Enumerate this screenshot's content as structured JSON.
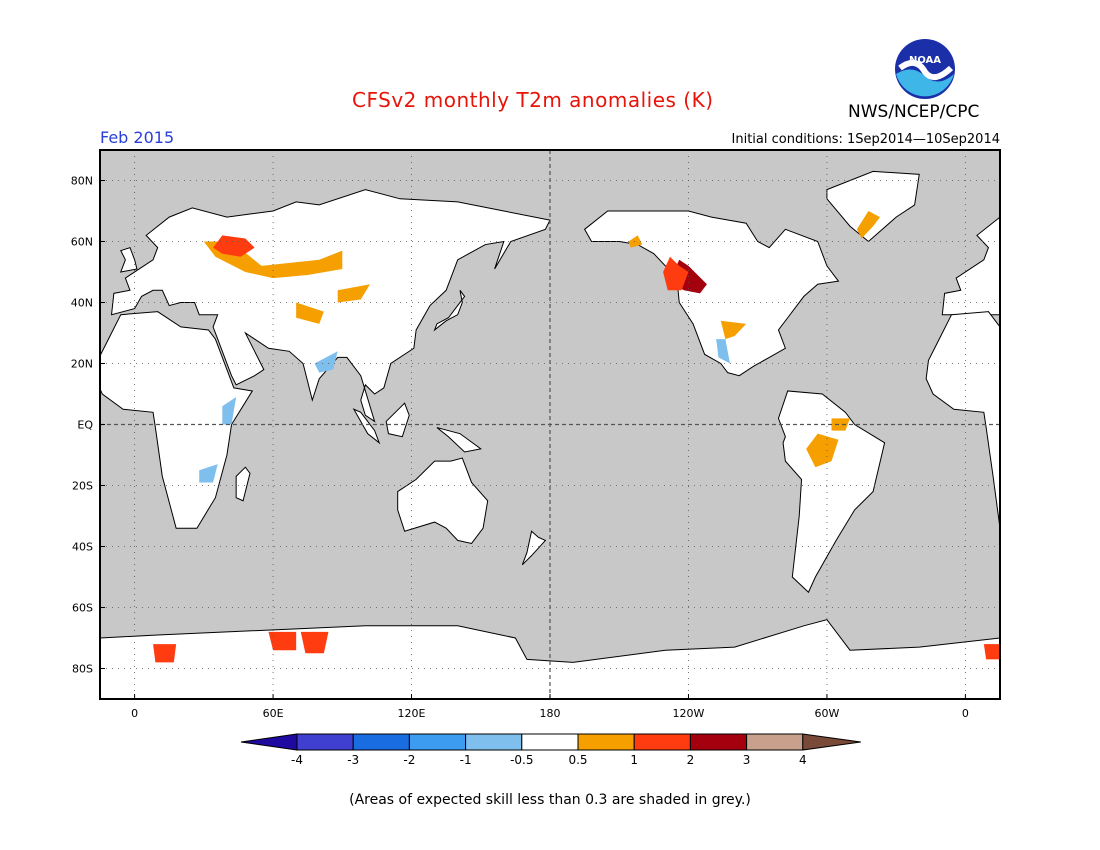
{
  "header": {
    "title": "CFSv2 monthly T2m anomalies (K)",
    "agency": "NWS/NCEP/CPC",
    "month": "Feb 2015",
    "initial_conditions": "Initial conditions: 1Sep2014—10Sep2014",
    "logo_icon": "noaa-logo-icon",
    "logo_text": "NOAA"
  },
  "map": {
    "lat_ticks": [
      {
        "lat": 80,
        "label": "80N"
      },
      {
        "lat": 60,
        "label": "60N"
      },
      {
        "lat": 40,
        "label": "40N"
      },
      {
        "lat": 20,
        "label": "20N"
      },
      {
        "lat": 0,
        "label": "EQ"
      },
      {
        "lat": -20,
        "label": "20S"
      },
      {
        "lat": -40,
        "label": "40S"
      },
      {
        "lat": -60,
        "label": "60S"
      },
      {
        "lat": -80,
        "label": "80S"
      }
    ],
    "lon_ticks": [
      {
        "lon": 0,
        "label": "0"
      },
      {
        "lon": 60,
        "label": "60E"
      },
      {
        "lon": 120,
        "label": "120E"
      },
      {
        "lon": 180,
        "label": "180"
      },
      {
        "lon": 240,
        "label": "120W"
      },
      {
        "lon": 300,
        "label": "60W"
      },
      {
        "lon": 360,
        "label": "0"
      }
    ],
    "lon_range": [
      -15,
      375
    ],
    "lat_range": [
      -90,
      90
    ],
    "ocean_color": "#c8c8c8",
    "skill_land_color": "#ffffff",
    "grid": "dotted",
    "anomalies": [
      {
        "name": "central-asia-warm",
        "value": 0.75,
        "points": [
          [
            30,
            60
          ],
          [
            42,
            60
          ],
          [
            55,
            52
          ],
          [
            80,
            54
          ],
          [
            90,
            57
          ],
          [
            90,
            51
          ],
          [
            75,
            49
          ],
          [
            60,
            48
          ],
          [
            48,
            50
          ],
          [
            35,
            55
          ]
        ]
      },
      {
        "name": "europe-russia-hot",
        "value": 1.5,
        "points": [
          [
            38,
            62
          ],
          [
            48,
            61
          ],
          [
            52,
            58
          ],
          [
            46,
            55
          ],
          [
            38,
            56
          ],
          [
            34,
            58
          ]
        ]
      },
      {
        "name": "mongolia-warm",
        "value": 0.75,
        "points": [
          [
            88,
            44
          ],
          [
            102,
            46
          ],
          [
            98,
            41
          ],
          [
            88,
            40
          ]
        ]
      },
      {
        "name": "tibet-warm",
        "value": 0.75,
        "points": [
          [
            70,
            40
          ],
          [
            82,
            37
          ],
          [
            80,
            33
          ],
          [
            70,
            35
          ]
        ]
      },
      {
        "name": "alaska-canada-warm",
        "value": 0.75,
        "points": [
          [
            214,
            60
          ],
          [
            218,
            62
          ],
          [
            220,
            59
          ],
          [
            215,
            58
          ]
        ]
      },
      {
        "name": "wus-very-hot",
        "value": 2.5,
        "points": [
          [
            233,
            49
          ],
          [
            236,
            54
          ],
          [
            240,
            52
          ],
          [
            248,
            46
          ],
          [
            245,
            43
          ],
          [
            238,
            44
          ],
          [
            234,
            46
          ]
        ]
      },
      {
        "name": "wus-hot",
        "value": 1.5,
        "points": [
          [
            229,
            50
          ],
          [
            232,
            55
          ],
          [
            236,
            52
          ],
          [
            240,
            50
          ],
          [
            237,
            44
          ],
          [
            231,
            44
          ]
        ]
      },
      {
        "name": "greenland-warm",
        "value": 0.75,
        "points": [
          [
            315,
            61
          ],
          [
            320,
            65
          ],
          [
            323,
            68
          ],
          [
            318,
            70
          ],
          [
            313,
            64
          ]
        ]
      },
      {
        "name": "texas-warm",
        "value": 0.75,
        "points": [
          [
            254,
            34
          ],
          [
            265,
            33
          ],
          [
            260,
            29
          ],
          [
            256,
            28
          ]
        ]
      },
      {
        "name": "amazon-warm",
        "value": 0.75,
        "points": [
          [
            296,
            -3
          ],
          [
            305,
            -5
          ],
          [
            302,
            -12
          ],
          [
            295,
            -14
          ],
          [
            291,
            -8
          ]
        ]
      },
      {
        "name": "brazil-warm",
        "value": 0.75,
        "points": [
          [
            302,
            2
          ],
          [
            310,
            2
          ],
          [
            308,
            -2
          ],
          [
            302,
            -2
          ]
        ]
      },
      {
        "name": "antarctica-hot-1",
        "value": 1.5,
        "points": [
          [
            8,
            -72
          ],
          [
            18,
            -72
          ],
          [
            17,
            -78
          ],
          [
            9,
            -78
          ]
        ]
      },
      {
        "name": "antarctica-hot-2",
        "value": 1.5,
        "points": [
          [
            58,
            -68
          ],
          [
            70,
            -68
          ],
          [
            70,
            -74
          ],
          [
            60,
            -74
          ]
        ]
      },
      {
        "name": "antarctica-hot-3",
        "value": 1.5,
        "points": [
          [
            72,
            -68
          ],
          [
            84,
            -68
          ],
          [
            82,
            -75
          ],
          [
            74,
            -75
          ]
        ]
      },
      {
        "name": "antarctica-hot-4",
        "value": 1.5,
        "points": [
          [
            368,
            -72
          ],
          [
            378,
            -72
          ],
          [
            377,
            -77
          ],
          [
            369,
            -77
          ]
        ]
      },
      {
        "name": "india-cool",
        "value": -0.75,
        "points": [
          [
            78,
            20
          ],
          [
            88,
            24
          ],
          [
            86,
            18
          ],
          [
            80,
            17
          ]
        ]
      },
      {
        "name": "east-africa-cool",
        "value": -0.75,
        "points": [
          [
            38,
            6
          ],
          [
            44,
            9
          ],
          [
            42,
            0
          ],
          [
            38,
            0
          ]
        ]
      },
      {
        "name": "mexico-cool",
        "value": -0.75,
        "points": [
          [
            252,
            28
          ],
          [
            256,
            28
          ],
          [
            258,
            20
          ],
          [
            253,
            22
          ]
        ]
      },
      {
        "name": "southern-africa-cool",
        "value": -0.75,
        "points": [
          [
            28,
            -15
          ],
          [
            36,
            -13
          ],
          [
            34,
            -19
          ],
          [
            28,
            -19
          ]
        ]
      }
    ]
  },
  "colorbar": {
    "colors": [
      "#1e0aa0",
      "#4040d0",
      "#1a6de0",
      "#3c9cf0",
      "#7ebfee",
      "#ffffff",
      "#f5a000",
      "#ff3c10",
      "#a5000e",
      "#c8a08c",
      "#7a4a38"
    ],
    "labels": [
      "-4",
      "-3",
      "-2",
      "-1",
      "-0.5",
      "0.5",
      "1",
      "2",
      "3",
      "4"
    ]
  },
  "footnote": "(Areas of expected skill less than 0.3 are shaded in grey.)"
}
